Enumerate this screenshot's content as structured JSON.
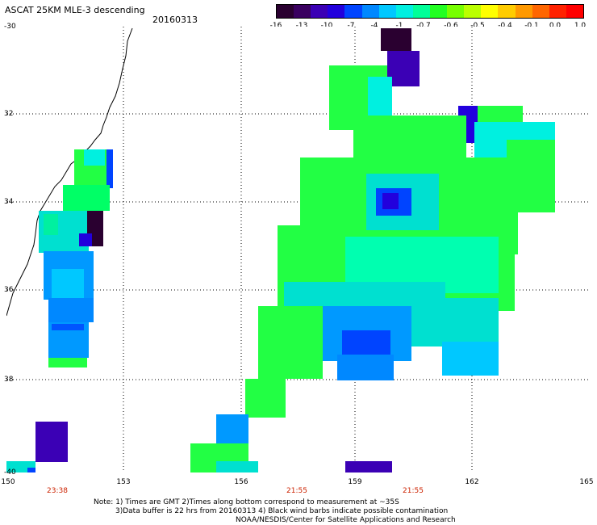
{
  "title": "ASCAT 25KM MLE-3 descending",
  "date": "20160313",
  "colorbar": {
    "labels": [
      "-16",
      "-13",
      "-10",
      "-7",
      "-4",
      "-1",
      "-0.7",
      "-0.6",
      "-0.5",
      "-0.4",
      "-0.1",
      "0.0",
      "1.0"
    ],
    "colors": [
      "#2a0030",
      "#3a0060",
      "#3b00b5",
      "#2200dd",
      "#0044ff",
      "#0088ff",
      "#00c8ff",
      "#00f0e0",
      "#00ff99",
      "#22ff22",
      "#77ff00",
      "#bbff00",
      "#ffff00",
      "#ffcc00",
      "#ff9900",
      "#ff6600",
      "#ff2200",
      "#ff0000"
    ]
  },
  "lat_labels": [
    "-30",
    "32",
    "34",
    "36",
    "38",
    "-40"
  ],
  "lon_labels": [
    "150",
    "153",
    "156",
    "159",
    "162",
    "165"
  ],
  "time_labels": [
    "23:38",
    "21:55",
    "21:55"
  ],
  "notes": [
    "Note: 1) Times are GMT 2)Times along bottom correspond to measurement at ~35S",
    "3)Data buffer is 22 hrs from 20160313 4) Black wind barbs indicate possible contamination",
    "NOAA/NESDIS/Center for Satellite Applications and Research"
  ]
}
